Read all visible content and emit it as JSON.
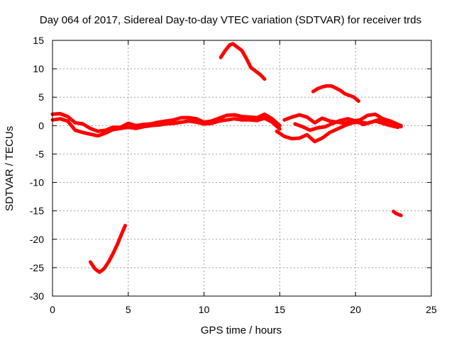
{
  "chart_data": {
    "type": "line",
    "title": "Day 064 of 2017, Sidereal Day-to-day VTEC variation (SDTVAR) for receiver trds",
    "xlabel": "GPS time / hours",
    "ylabel": "SDTVAR / TECUs",
    "xlim": [
      0,
      25
    ],
    "ylim": [
      -30,
      15
    ],
    "xticks": [
      0,
      5,
      10,
      15,
      20,
      25
    ],
    "yticks": [
      -30,
      -25,
      -20,
      -15,
      -10,
      -5,
      0,
      5,
      10,
      15
    ],
    "grid": true,
    "color": "#ff0000",
    "series": [
      {
        "name": "segment-main-upper",
        "x": [
          0,
          0.5,
          1.0,
          1.5,
          2.0,
          2.5,
          3.0,
          3.5,
          4.0,
          4.5,
          5.0,
          5.5,
          6.0,
          6.5,
          7.0,
          7.5,
          8.0,
          8.5,
          9.0,
          9.5,
          10.0,
          10.5,
          11.0,
          11.5,
          12.0,
          12.5,
          13.0,
          13.5,
          14.0,
          14.5,
          15.0
        ],
        "y": [
          2.0,
          2.1,
          1.6,
          0.5,
          0.3,
          -0.5,
          -1.0,
          -0.8,
          -0.3,
          -0.3,
          0.4,
          0.0,
          0.2,
          0.3,
          0.6,
          0.8,
          1.0,
          1.4,
          1.4,
          1.2,
          0.6,
          0.8,
          1.3,
          1.8,
          1.9,
          1.6,
          1.5,
          1.4,
          2.0,
          1.2,
          0.0
        ]
      },
      {
        "name": "segment-main-lower",
        "x": [
          0,
          0.5,
          1.0,
          1.5,
          2.0,
          2.5,
          3.0,
          3.5,
          4.0,
          4.5,
          5.0,
          5.5,
          6.0,
          6.5,
          7.0,
          7.5,
          8.0,
          8.5,
          9.0,
          9.5,
          10.0,
          10.5,
          11.0,
          11.5,
          12.0,
          12.5,
          13.0,
          13.5,
          14.0,
          14.5,
          15.0
        ],
        "y": [
          1.0,
          1.2,
          0.8,
          -0.8,
          -1.2,
          -1.5,
          -1.8,
          -1.3,
          -0.7,
          -0.5,
          -0.3,
          -0.5,
          -0.2,
          0.0,
          0.1,
          0.3,
          0.4,
          0.6,
          0.8,
          0.6,
          0.3,
          0.4,
          0.8,
          1.0,
          1.2,
          1.0,
          1.0,
          0.9,
          1.3,
          0.6,
          -0.6
        ]
      },
      {
        "name": "segment-15-23-a",
        "x": [
          15.3,
          15.8,
          16.3,
          16.8,
          17.3,
          17.8,
          18.3,
          18.8,
          19.3,
          19.8,
          20.3,
          20.8,
          21.3,
          21.8,
          22.3,
          22.8,
          23.0
        ],
        "y": [
          1.0,
          1.5,
          1.9,
          1.5,
          0.5,
          1.3,
          0.8,
          0.6,
          0.4,
          0.8,
          1.0,
          1.8,
          2.0,
          1.2,
          0.8,
          0.2,
          -0.2
        ]
      },
      {
        "name": "segment-15-23-b",
        "x": [
          14.8,
          15.3,
          15.8,
          16.3,
          16.8,
          17.3,
          17.8,
          18.3,
          18.8,
          19.3,
          19.8,
          20.3,
          20.8,
          21.3,
          21.8,
          22.3,
          22.8
        ],
        "y": [
          -1.0,
          -1.9,
          -2.3,
          -2.2,
          -1.6,
          -2.8,
          -2.2,
          -1.2,
          -0.6,
          0.0,
          0.5,
          0.6,
          0.4,
          0.8,
          0.4,
          0.0,
          -0.3
        ]
      },
      {
        "name": "segment-15-23-c",
        "x": [
          16.0,
          16.5,
          17.0,
          17.5,
          18.0,
          18.5,
          19.0,
          19.5,
          20.0,
          20.5,
          21.0,
          21.5,
          22.0,
          22.5,
          23.0
        ],
        "y": [
          0.3,
          -0.2,
          -0.8,
          -0.4,
          -0.2,
          0.4,
          0.9,
          1.2,
          0.8,
          0.2,
          0.6,
          1.0,
          0.9,
          0.5,
          0.0
        ]
      },
      {
        "name": "segment-peak-12",
        "x": [
          11.1,
          11.4,
          11.7,
          11.9,
          12.2,
          12.5,
          12.8,
          13.1,
          13.4,
          13.7,
          14.0
        ],
        "y": [
          12.0,
          13.2,
          14.2,
          14.4,
          13.8,
          13.2,
          11.8,
          10.2,
          9.6,
          9.0,
          8.2
        ]
      },
      {
        "name": "segment-peak-18",
        "x": [
          17.2,
          17.5,
          17.8,
          18.1,
          18.4,
          18.7,
          19.0,
          19.3,
          19.6,
          19.9,
          20.2
        ],
        "y": [
          6.0,
          6.5,
          6.8,
          7.0,
          7.0,
          6.6,
          6.2,
          5.6,
          5.3,
          5.0,
          4.3
        ]
      },
      {
        "name": "segment-trough-3",
        "x": [
          2.5,
          2.8,
          3.1,
          3.4,
          3.7,
          4.0,
          4.3,
          4.6,
          4.8
        ],
        "y": [
          -24.0,
          -25.2,
          -25.8,
          -25.2,
          -24.0,
          -22.5,
          -20.8,
          -18.8,
          -17.6
        ]
      },
      {
        "name": "segment-short-22",
        "x": [
          22.5,
          22.7,
          23.0
        ],
        "y": [
          -15.1,
          -15.5,
          -15.8
        ]
      }
    ]
  }
}
